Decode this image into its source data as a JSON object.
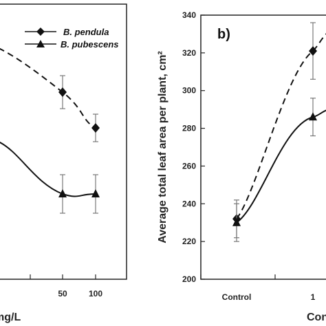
{
  "chart_data": [
    {
      "panel": "a",
      "type": "line",
      "x": [
        50,
        100
      ],
      "xticks": [
        "50",
        "100"
      ],
      "xlabel_visible": "mg/L",
      "series": [
        {
          "name": "B. pendula",
          "marker": "diamond",
          "line": "dashed",
          "values": [
            [
              50,
              0.68
            ],
            [
              100,
              0.55
            ]
          ],
          "errors": [
            0.06,
            0.05
          ]
        },
        {
          "name": "B. pubescens",
          "marker": "triangle",
          "line": "solid",
          "values": [
            [
              50,
              0.31
            ],
            [
              100,
              0.31
            ]
          ],
          "errors": [
            0.07,
            0.07
          ]
        }
      ],
      "note": "values on unlabeled y scale (fraction of visible panel height)"
    },
    {
      "panel": "b",
      "type": "line",
      "panel_label": "b)",
      "categories": [
        "Control",
        "1"
      ],
      "xticks": [
        "Control",
        "1"
      ],
      "xlabel_visible": "Con",
      "ylabel": "Average total leaf area per plant, cm²",
      "ylim": [
        200,
        340
      ],
      "yticks": [
        "200",
        "220",
        "240",
        "260",
        "280",
        "300",
        "320",
        "340"
      ],
      "series": [
        {
          "name": "B. pendula",
          "marker": "diamond",
          "line": "dashed",
          "values": [
            232,
            321
          ],
          "errors": [
            10,
            15
          ]
        },
        {
          "name": "B. pubescens",
          "marker": "triangle",
          "line": "solid",
          "values": [
            230,
            286
          ],
          "errors": [
            10,
            10
          ]
        }
      ]
    }
  ],
  "legend": {
    "items": [
      "B. pendula",
      "B. pubescens"
    ]
  }
}
